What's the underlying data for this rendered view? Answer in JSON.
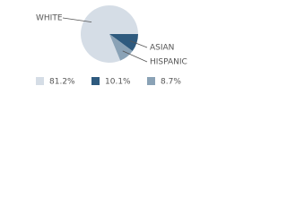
{
  "chart_data": {
    "type": "pie",
    "categories": [
      "WHITE",
      "ASIAN",
      "HISPANIC"
    ],
    "values": [
      81.2,
      10.1,
      8.7
    ],
    "value_labels": [
      "81.2%",
      "10.1%",
      "8.7%"
    ],
    "colors": [
      "#d5dde6",
      "#2e5a7e",
      "#8aa2b6"
    ]
  }
}
